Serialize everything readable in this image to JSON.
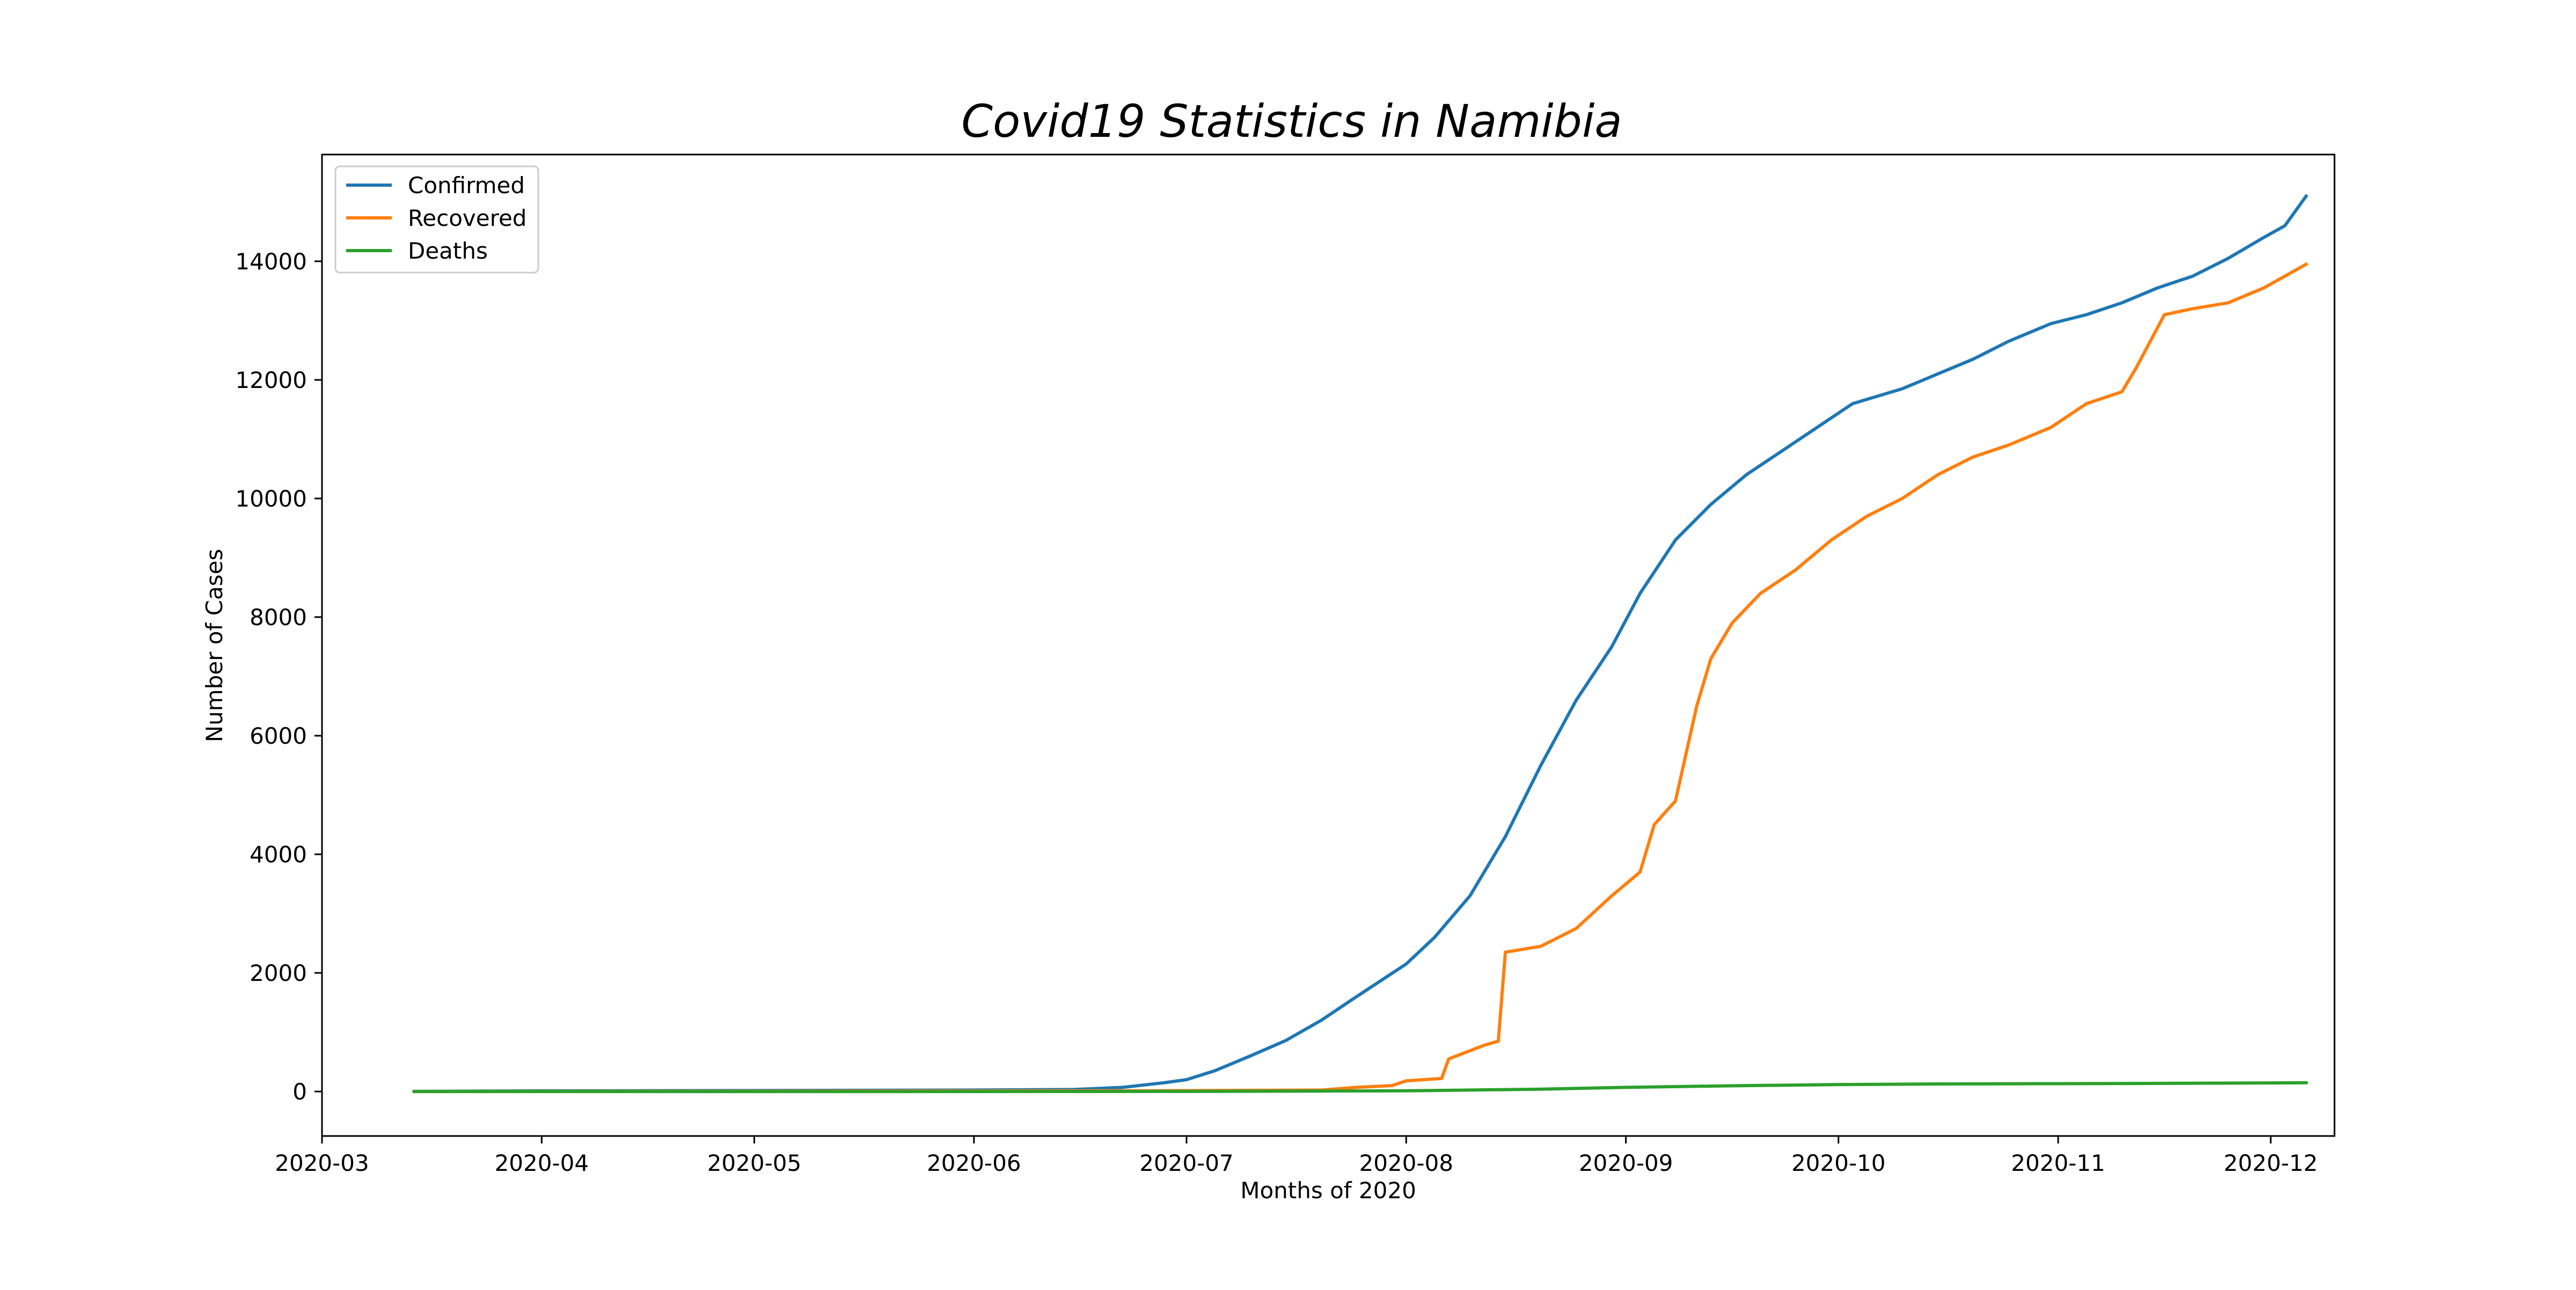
{
  "chart_data": {
    "type": "line",
    "title": "Covid19 Statistics in Namibia",
    "xlabel": "Months of 2020",
    "ylabel": "Number of Cases",
    "xlim": [
      "2020-03-01",
      "2020-12-10"
    ],
    "ylim": [
      -750,
      15800
    ],
    "x_ticks": [
      "2020-03-01",
      "2020-04-01",
      "2020-05-01",
      "2020-06-01",
      "2020-07-01",
      "2020-08-01",
      "2020-09-01",
      "2020-10-01",
      "2020-11-01",
      "2020-12-01"
    ],
    "x_tick_labels": [
      "2020-03",
      "2020-04",
      "2020-05",
      "2020-06",
      "2020-07",
      "2020-08",
      "2020-09",
      "2020-10",
      "2020-11",
      "2020-12"
    ],
    "y_ticks": [
      0,
      2000,
      4000,
      6000,
      8000,
      10000,
      12000,
      14000
    ],
    "y_tick_labels": [
      "0",
      "2000",
      "4000",
      "6000",
      "8000",
      "10000",
      "12000",
      "14000"
    ],
    "grid": false,
    "legend_position": "top-left",
    "series": [
      {
        "name": "Confirmed",
        "color": "#1f77b4",
        "points": [
          [
            "2020-03-14",
            2
          ],
          [
            "2020-04-01",
            11
          ],
          [
            "2020-05-01",
            16
          ],
          [
            "2020-06-01",
            25
          ],
          [
            "2020-06-15",
            34
          ],
          [
            "2020-06-22",
            70
          ],
          [
            "2020-06-28",
            150
          ],
          [
            "2020-07-01",
            200
          ],
          [
            "2020-07-05",
            350
          ],
          [
            "2020-07-10",
            600
          ],
          [
            "2020-07-15",
            860
          ],
          [
            "2020-07-20",
            1200
          ],
          [
            "2020-07-25",
            1600
          ],
          [
            "2020-08-01",
            2150
          ],
          [
            "2020-08-05",
            2600
          ],
          [
            "2020-08-10",
            3300
          ],
          [
            "2020-08-15",
            4300
          ],
          [
            "2020-08-20",
            5500
          ],
          [
            "2020-08-25",
            6600
          ],
          [
            "2020-08-30",
            7500
          ],
          [
            "2020-09-03",
            8400
          ],
          [
            "2020-09-08",
            9300
          ],
          [
            "2020-09-13",
            9900
          ],
          [
            "2020-09-18",
            10400
          ],
          [
            "2020-09-23",
            10800
          ],
          [
            "2020-09-28",
            11200
          ],
          [
            "2020-10-03",
            11600
          ],
          [
            "2020-10-10",
            11850
          ],
          [
            "2020-10-15",
            12100
          ],
          [
            "2020-10-20",
            12350
          ],
          [
            "2020-10-25",
            12650
          ],
          [
            "2020-10-31",
            12950
          ],
          [
            "2020-11-05",
            13100
          ],
          [
            "2020-11-10",
            13300
          ],
          [
            "2020-11-15",
            13550
          ],
          [
            "2020-11-20",
            13750
          ],
          [
            "2020-11-25",
            14050
          ],
          [
            "2020-11-30",
            14400
          ],
          [
            "2020-12-03",
            14600
          ],
          [
            "2020-12-06",
            15100
          ]
        ]
      },
      {
        "name": "Recovered",
        "color": "#ff7f0e",
        "points": [
          [
            "2020-03-14",
            0
          ],
          [
            "2020-06-01",
            10
          ],
          [
            "2020-07-01",
            15
          ],
          [
            "2020-07-20",
            25
          ],
          [
            "2020-07-25",
            70
          ],
          [
            "2020-07-30",
            100
          ],
          [
            "2020-08-01",
            180
          ],
          [
            "2020-08-06",
            220
          ],
          [
            "2020-08-07",
            550
          ],
          [
            "2020-08-12",
            780
          ],
          [
            "2020-08-14",
            850
          ],
          [
            "2020-08-15",
            2350
          ],
          [
            "2020-08-20",
            2450
          ],
          [
            "2020-08-25",
            2750
          ],
          [
            "2020-08-30",
            3300
          ],
          [
            "2020-09-03",
            3700
          ],
          [
            "2020-09-05",
            4500
          ],
          [
            "2020-09-08",
            4900
          ],
          [
            "2020-09-11",
            6500
          ],
          [
            "2020-09-13",
            7300
          ],
          [
            "2020-09-16",
            7900
          ],
          [
            "2020-09-20",
            8400
          ],
          [
            "2020-09-25",
            8800
          ],
          [
            "2020-09-30",
            9300
          ],
          [
            "2020-10-05",
            9700
          ],
          [
            "2020-10-10",
            10000
          ],
          [
            "2020-10-15",
            10400
          ],
          [
            "2020-10-20",
            10700
          ],
          [
            "2020-10-25",
            10900
          ],
          [
            "2020-10-31",
            11200
          ],
          [
            "2020-11-05",
            11600
          ],
          [
            "2020-11-10",
            11800
          ],
          [
            "2020-11-12",
            12200
          ],
          [
            "2020-11-16",
            13100
          ],
          [
            "2020-11-20",
            13200
          ],
          [
            "2020-11-25",
            13300
          ],
          [
            "2020-11-30",
            13550
          ],
          [
            "2020-12-06",
            13950
          ]
        ]
      },
      {
        "name": "Deaths",
        "color": "#2ca02c",
        "points": [
          [
            "2020-03-14",
            0
          ],
          [
            "2020-06-01",
            0
          ],
          [
            "2020-07-01",
            2
          ],
          [
            "2020-07-20",
            8
          ],
          [
            "2020-08-01",
            12
          ],
          [
            "2020-08-10",
            25
          ],
          [
            "2020-08-20",
            40
          ],
          [
            "2020-09-01",
            70
          ],
          [
            "2020-09-15",
            95
          ],
          [
            "2020-10-01",
            118
          ],
          [
            "2020-10-15",
            128
          ],
          [
            "2020-11-01",
            132
          ],
          [
            "2020-11-15",
            137
          ],
          [
            "2020-12-01",
            145
          ],
          [
            "2020-12-06",
            148
          ]
        ]
      }
    ]
  }
}
